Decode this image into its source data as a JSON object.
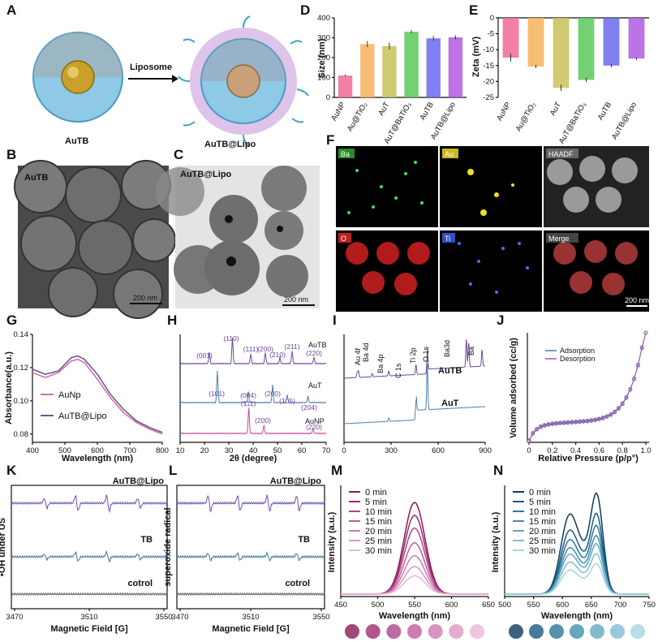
{
  "panel_letters": [
    "A",
    "B",
    "C",
    "D",
    "E",
    "F",
    "G",
    "H",
    "I",
    "J",
    "K",
    "L",
    "M",
    "N"
  ],
  "schematic": {
    "arrow_label": "Liposome",
    "left_label": "AuTB",
    "right_label": "AuTB@Lipo"
  },
  "tem": {
    "b_label": "AuTB",
    "c_label": "AuTB@Lipo",
    "scale_b": "200 nm",
    "scale_c": "200 nm"
  },
  "eds": {
    "labels": [
      "Ba",
      "Au",
      "HAADF",
      "O",
      "Ti",
      "Merge"
    ],
    "scale": "200 nm"
  },
  "colors": {
    "purple": "#7b5bb0",
    "blue": "#4f7fa8",
    "pink": "#d86fa6",
    "grey": "#777777"
  },
  "chart_data": [
    {
      "panel": "D",
      "type": "bar",
      "categories": [
        "AuNP",
        "Au@TiO₂",
        "AuT",
        "AuT@BaTiO₃",
        "AuTB",
        "AuTB@Lipo"
      ],
      "values": [
        110,
        268,
        258,
        330,
        297,
        302
      ],
      "errors": [
        5,
        15,
        18,
        8,
        12,
        10
      ],
      "colors": [
        "#f06a96",
        "#f6b25d",
        "#c8c25a",
        "#5cc95a",
        "#6a6af0",
        "#b05ae0"
      ],
      "ylabel": "Size (nm)",
      "ylim": [
        0,
        400
      ],
      "yticks": [
        "0",
        "100",
        "200",
        "300",
        "400"
      ]
    },
    {
      "panel": "E",
      "type": "bar",
      "categories": [
        "AuNP",
        "Au@TiO₂",
        "AuT",
        "AuT@BaTiO₃",
        "AuTB",
        "AuTB@Lipo"
      ],
      "values": [
        -12.5,
        -15.3,
        -22,
        -19.5,
        -15,
        -12.8
      ],
      "errors": [
        1.2,
        0.5,
        1,
        0.7,
        0.6,
        0.4
      ],
      "colors": [
        "#f06a96",
        "#f6b25d",
        "#c8c25a",
        "#5cc95a",
        "#6a6af0",
        "#b05ae0"
      ],
      "ylabel": "Zeta (mV)",
      "ylim": [
        -25,
        0
      ],
      "yticks": [
        "0",
        "-5",
        "-10",
        "-15",
        "-20",
        "-25"
      ]
    },
    {
      "panel": "G",
      "type": "line",
      "xlabel": "Wavelength (nm)",
      "ylabel": "Absorbance(a.u.)",
      "xlim": [
        400,
        800
      ],
      "ylim": [
        0.075,
        0.14
      ],
      "xticks": [
        "400",
        "500",
        "600",
        "700",
        "800"
      ],
      "yticks": [
        "0.08",
        "0.10",
        "0.12",
        "0.14"
      ],
      "series": [
        {
          "name": "AuNp",
          "x": [
            400,
            440,
            480,
            520,
            540,
            560,
            600,
            640,
            680,
            720,
            760,
            800
          ],
          "y": [
            0.117,
            0.114,
            0.117,
            0.124,
            0.125,
            0.123,
            0.113,
            0.102,
            0.093,
            0.087,
            0.083,
            0.08
          ]
        },
        {
          "name": "AuTB@Lipo",
          "x": [
            400,
            440,
            480,
            520,
            540,
            560,
            600,
            640,
            680,
            720,
            760,
            800
          ],
          "y": [
            0.119,
            0.116,
            0.118,
            0.126,
            0.127,
            0.125,
            0.116,
            0.104,
            0.095,
            0.088,
            0.084,
            0.081
          ]
        }
      ]
    },
    {
      "panel": "H",
      "type": "line",
      "xlabel": "2θ (degree)",
      "xlim": [
        10,
        70
      ],
      "xticks": [
        "10",
        "20",
        "30",
        "40",
        "50",
        "60",
        "70"
      ],
      "series": [
        {
          "name": "AuTB"
        },
        {
          "name": "AuT"
        },
        {
          "name": "AuNP"
        }
      ],
      "annotations": {
        "AuTB": [
          "(001)",
          "(110)",
          "(111)",
          "(200)",
          "(210)",
          "(211)",
          "(220)"
        ],
        "AuT": [
          "(101)",
          "(004)",
          "(200)",
          "(105)",
          "(204)"
        ],
        "AuNP": [
          "(111)",
          "(200)",
          "(220)"
        ]
      }
    },
    {
      "panel": "I",
      "type": "line",
      "xlim": [
        0,
        900
      ],
      "xticks": [
        "0",
        "300",
        "600",
        "900"
      ],
      "series": [
        {
          "name": "AuTB"
        },
        {
          "name": "AuT"
        }
      ],
      "annotations": [
        "Au 4f",
        "Ba 4d",
        "Ba 4p",
        "C 1s",
        "Ti 2p",
        "O 1s",
        "Ba3d",
        "Ba"
      ]
    },
    {
      "panel": "J",
      "type": "line",
      "xlabel": "Relative Pressure (p/p°)",
      "ylabel": "Volume adsorbed (cc/g)",
      "xlim": [
        0,
        1
      ],
      "xticks": [
        "0",
        "0.2",
        "0.4",
        "0.6",
        "0.8",
        "1.0"
      ],
      "series": [
        {
          "name": "Adsorption"
        },
        {
          "name": "Desorption"
        }
      ]
    },
    {
      "panel": "K",
      "type": "line",
      "xlabel": "Magnetic Field [G]",
      "ylabel": "•OH under US",
      "xticks": [
        "3470",
        "3510",
        "3550"
      ],
      "series": [
        {
          "name": "AuTB@Lipo"
        },
        {
          "name": "TB"
        },
        {
          "name": "cotrol"
        }
      ]
    },
    {
      "panel": "L",
      "type": "line",
      "xlabel": "Magnetic Field [G]",
      "ylabel": "superoxide radical",
      "xticks": [
        "3470",
        "3510",
        "3550"
      ],
      "series": [
        {
          "name": "AuTB@Lipo"
        },
        {
          "name": "TB"
        },
        {
          "name": "cotrol"
        }
      ]
    },
    {
      "panel": "M",
      "type": "line",
      "xlabel": "Wavelength (nm)",
      "ylabel": "Intensity (a.u.)",
      "xlim": [
        450,
        650
      ],
      "xticks": [
        "450",
        "500",
        "550",
        "600",
        "650"
      ],
      "series": [
        {
          "name": "0 min",
          "peak": 1.0
        },
        {
          "name": "5 min",
          "peak": 0.86
        },
        {
          "name": "10 min",
          "peak": 0.72
        },
        {
          "name": "15 min",
          "peak": 0.56
        },
        {
          "name": "20 min",
          "peak": 0.42
        },
        {
          "name": "25 min",
          "peak": 0.3
        },
        {
          "name": "30 min",
          "peak": 0.2
        }
      ]
    },
    {
      "panel": "N",
      "type": "line",
      "xlabel": "Wavelength (nm)",
      "ylabel": "Intensity (a.u.)",
      "xlim": [
        500,
        750
      ],
      "xticks": [
        "500",
        "550",
        "600",
        "650",
        "700",
        "750"
      ],
      "series": [
        {
          "name": "0 min",
          "peak": 1.0
        },
        {
          "name": "5 min",
          "peak": 0.8
        },
        {
          "name": "10 min",
          "peak": 0.68
        },
        {
          "name": "15 min",
          "peak": 0.58
        },
        {
          "name": "20 min",
          "peak": 0.5
        },
        {
          "name": "25 min",
          "peak": 0.4
        },
        {
          "name": "30 min",
          "peak": 0.3
        }
      ]
    }
  ]
}
